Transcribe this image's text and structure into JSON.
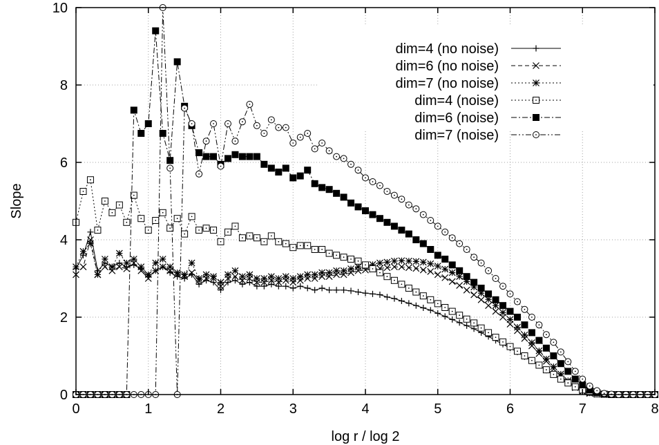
{
  "chart_data": {
    "type": "line",
    "title": "",
    "xlabel": "log r / log 2",
    "ylabel": "Slope",
    "xlim": [
      0,
      8
    ],
    "ylim": [
      0,
      10
    ],
    "xticks": [
      "0",
      "1",
      "2",
      "3",
      "4",
      "5",
      "6",
      "7",
      "8"
    ],
    "yticks": [
      "0",
      "2",
      "4",
      "6",
      "8",
      "10"
    ],
    "grid": true,
    "legend_position": "top-right",
    "series": [
      {
        "name": "dim=4 (no noise)",
        "marker": "plus",
        "line": "solid",
        "x": [
          0,
          0.1,
          0.2,
          0.3,
          0.4,
          0.5,
          0.6,
          0.7,
          0.8,
          0.9,
          1.0,
          1.1,
          1.2,
          1.3,
          1.4,
          1.5,
          1.6,
          1.7,
          1.8,
          1.9,
          2.0,
          2.1,
          2.2,
          2.3,
          2.4,
          2.5,
          2.6,
          2.7,
          2.8,
          2.9,
          3.0,
          3.1,
          3.2,
          3.3,
          3.4,
          3.5,
          3.6,
          3.7,
          3.8,
          3.9,
          4.0,
          4.1,
          4.2,
          4.3,
          4.4,
          4.5,
          4.6,
          4.7,
          4.8,
          4.9,
          5.0,
          5.1,
          5.2,
          5.3,
          5.4,
          5.5,
          5.6,
          5.7,
          5.8,
          5.9,
          6.0,
          6.1,
          6.2,
          6.3,
          6.4,
          6.5,
          6.6,
          6.7,
          6.8,
          6.9,
          7.0,
          7.1,
          7.2,
          7.3,
          7.4,
          7.5,
          7.6,
          7.7,
          7.8,
          7.9,
          8.0
        ],
        "y": [
          3.25,
          3.6,
          4.2,
          3.2,
          3.4,
          3.3,
          3.4,
          3.3,
          3.35,
          3.25,
          3.05,
          3.2,
          3.3,
          3.15,
          3.05,
          3.0,
          3.1,
          2.85,
          2.95,
          2.9,
          2.7,
          2.9,
          2.95,
          2.85,
          2.9,
          2.8,
          2.8,
          2.85,
          2.8,
          2.8,
          2.75,
          2.8,
          2.75,
          2.7,
          2.75,
          2.7,
          2.7,
          2.7,
          2.68,
          2.65,
          2.62,
          2.6,
          2.58,
          2.52,
          2.48,
          2.42,
          2.36,
          2.3,
          2.24,
          2.18,
          2.1,
          2.02,
          1.94,
          1.86,
          1.78,
          1.7,
          1.6,
          1.5,
          1.4,
          1.3,
          1.2,
          1.1,
          0.98,
          0.87,
          0.75,
          0.63,
          0.52,
          0.4,
          0.3,
          0.2,
          0.12,
          0.05,
          0.02,
          0.01,
          0,
          0,
          0,
          0,
          0,
          0,
          0
        ]
      },
      {
        "name": "dim=6 (no noise)",
        "marker": "cross",
        "line": "dashed",
        "x": [
          0,
          0.1,
          0.2,
          0.3,
          0.4,
          0.5,
          0.6,
          0.7,
          0.8,
          0.9,
          1.0,
          1.1,
          1.2,
          1.3,
          1.4,
          1.5,
          1.6,
          1.7,
          1.8,
          1.9,
          2.0,
          2.1,
          2.2,
          2.3,
          2.4,
          2.5,
          2.6,
          2.7,
          2.8,
          2.9,
          3.0,
          3.1,
          3.2,
          3.3,
          3.4,
          3.5,
          3.6,
          3.7,
          3.8,
          3.9,
          4.0,
          4.1,
          4.2,
          4.3,
          4.4,
          4.5,
          4.6,
          4.7,
          4.8,
          4.9,
          5.0,
          5.1,
          5.2,
          5.3,
          5.4,
          5.5,
          5.6,
          5.7,
          5.8,
          5.9,
          6.0,
          6.1,
          6.2,
          6.3,
          6.4,
          6.5,
          6.6,
          6.7,
          6.8,
          6.9,
          7.0,
          7.1,
          7.2,
          7.3,
          7.4,
          7.5,
          7.6,
          7.7,
          7.8,
          7.9,
          8.0
        ],
        "y": [
          3.1,
          3.3,
          4.0,
          3.1,
          3.3,
          3.2,
          3.3,
          3.25,
          3.4,
          3.2,
          3.0,
          3.2,
          3.3,
          3.2,
          3.1,
          3.05,
          3.15,
          2.95,
          3.0,
          3.0,
          2.8,
          3.0,
          3.05,
          2.95,
          3.0,
          2.9,
          2.9,
          2.95,
          2.9,
          2.95,
          2.9,
          2.95,
          3.0,
          3.0,
          3.05,
          3.05,
          3.1,
          3.1,
          3.15,
          3.2,
          3.22,
          3.24,
          3.26,
          3.28,
          3.3,
          3.3,
          3.28,
          3.26,
          3.22,
          3.18,
          3.1,
          3.02,
          2.92,
          2.82,
          2.7,
          2.58,
          2.45,
          2.3,
          2.15,
          2.0,
          1.82,
          1.65,
          1.45,
          1.26,
          1.06,
          0.86,
          0.66,
          0.48,
          0.32,
          0.18,
          0.08,
          0.03,
          0.01,
          0,
          0,
          0,
          0,
          0,
          0,
          0,
          0
        ]
      },
      {
        "name": "dim=7 (no noise)",
        "marker": "star",
        "line": "dotted",
        "x": [
          0,
          0.1,
          0.2,
          0.3,
          0.4,
          0.5,
          0.6,
          0.7,
          0.8,
          0.9,
          1.0,
          1.1,
          1.2,
          1.3,
          1.4,
          1.5,
          1.6,
          1.7,
          1.8,
          1.9,
          2.0,
          2.1,
          2.2,
          2.3,
          2.4,
          2.5,
          2.6,
          2.7,
          2.8,
          2.9,
          3.0,
          3.1,
          3.2,
          3.3,
          3.4,
          3.5,
          3.6,
          3.7,
          3.8,
          3.9,
          4.0,
          4.1,
          4.2,
          4.3,
          4.4,
          4.5,
          4.6,
          4.7,
          4.8,
          4.9,
          5.0,
          5.1,
          5.2,
          5.3,
          5.4,
          5.5,
          5.6,
          5.7,
          5.8,
          5.9,
          6.0,
          6.1,
          6.2,
          6.3,
          6.4,
          6.5,
          6.6,
          6.7,
          6.8,
          6.9,
          7.0,
          7.1,
          7.2,
          7.3,
          7.4,
          7.5,
          7.6,
          7.7,
          7.8,
          7.9,
          8.0
        ],
        "y": [
          3.3,
          3.7,
          3.9,
          3.1,
          3.5,
          3.3,
          3.65,
          3.4,
          3.5,
          3.3,
          3.1,
          3.4,
          3.5,
          3.3,
          3.15,
          3.1,
          3.4,
          3.0,
          3.1,
          3.05,
          2.9,
          3.1,
          3.2,
          3.05,
          3.1,
          3.0,
          3.0,
          3.05,
          3.0,
          3.05,
          3.0,
          3.05,
          3.1,
          3.1,
          3.15,
          3.15,
          3.2,
          3.2,
          3.25,
          3.3,
          3.32,
          3.36,
          3.4,
          3.42,
          3.45,
          3.46,
          3.45,
          3.44,
          3.42,
          3.38,
          3.32,
          3.24,
          3.15,
          3.05,
          2.92,
          2.78,
          2.62,
          2.46,
          2.3,
          2.12,
          1.94,
          1.74,
          1.54,
          1.34,
          1.13,
          0.92,
          0.72,
          0.53,
          0.36,
          0.21,
          0.1,
          0.04,
          0.01,
          0,
          0,
          0,
          0,
          0,
          0,
          0,
          0
        ]
      },
      {
        "name": "dim=4 (noise)",
        "marker": "dotted-square",
        "line": "dotted",
        "x": [
          0,
          0.1,
          0.2,
          0.3,
          0.4,
          0.5,
          0.6,
          0.7,
          0.8,
          0.9,
          1.0,
          1.1,
          1.2,
          1.3,
          1.4,
          1.5,
          1.6,
          1.7,
          1.8,
          1.9,
          2.0,
          2.1,
          2.2,
          2.3,
          2.4,
          2.5,
          2.6,
          2.7,
          2.8,
          2.9,
          3.0,
          3.1,
          3.2,
          3.3,
          3.4,
          3.5,
          3.6,
          3.7,
          3.8,
          3.9,
          4.0,
          4.1,
          4.2,
          4.3,
          4.4,
          4.5,
          4.6,
          4.7,
          4.8,
          4.9,
          5.0,
          5.1,
          5.2,
          5.3,
          5.4,
          5.5,
          5.6,
          5.7,
          5.8,
          5.9,
          6.0,
          6.1,
          6.2,
          6.3,
          6.4,
          6.5,
          6.6,
          6.7,
          6.8,
          6.9,
          7.0,
          7.1,
          7.2,
          7.3,
          7.4,
          7.5,
          7.6,
          7.7,
          7.8,
          7.9,
          8.0
        ],
        "y": [
          4.45,
          5.25,
          5.55,
          4.25,
          5.0,
          4.7,
          4.9,
          4.45,
          5.15,
          4.55,
          4.25,
          4.5,
          4.7,
          4.3,
          4.55,
          4.15,
          4.6,
          4.25,
          4.3,
          4.25,
          3.95,
          4.2,
          4.35,
          4.05,
          4.1,
          4.05,
          3.95,
          4.1,
          3.95,
          3.9,
          3.8,
          3.85,
          3.85,
          3.75,
          3.75,
          3.65,
          3.6,
          3.55,
          3.5,
          3.45,
          3.35,
          3.25,
          3.15,
          3.05,
          2.95,
          2.85,
          2.75,
          2.65,
          2.55,
          2.45,
          2.35,
          2.25,
          2.15,
          2.05,
          1.95,
          1.85,
          1.72,
          1.6,
          1.48,
          1.36,
          1.24,
          1.12,
          1.0,
          0.88,
          0.76,
          0.64,
          0.52,
          0.4,
          0.3,
          0.2,
          0.12,
          0.06,
          0.02,
          0.01,
          0,
          0,
          0,
          0,
          0,
          0,
          0
        ]
      },
      {
        "name": "dim=6 (noise)",
        "marker": "filled-square",
        "line": "dash-dot",
        "x": [
          0,
          0.1,
          0.2,
          0.3,
          0.4,
          0.5,
          0.6,
          0.7,
          0.8,
          0.9,
          1.0,
          1.1,
          1.2,
          1.3,
          1.4,
          1.5,
          1.6,
          1.7,
          1.8,
          1.9,
          2.0,
          2.1,
          2.2,
          2.3,
          2.4,
          2.5,
          2.6,
          2.7,
          2.8,
          2.9,
          3.0,
          3.1,
          3.2,
          3.3,
          3.4,
          3.5,
          3.6,
          3.7,
          3.8,
          3.9,
          4.0,
          4.1,
          4.2,
          4.3,
          4.4,
          4.5,
          4.6,
          4.7,
          4.8,
          4.9,
          5.0,
          5.1,
          5.2,
          5.3,
          5.4,
          5.5,
          5.6,
          5.7,
          5.8,
          5.9,
          6.0,
          6.1,
          6.2,
          6.3,
          6.4,
          6.5,
          6.6,
          6.7,
          6.8,
          6.9,
          7.0,
          7.1,
          7.2,
          7.3,
          7.4,
          7.5,
          7.6,
          7.7,
          7.8,
          7.9,
          8.0
        ],
        "y": [
          0,
          0,
          0,
          0,
          0,
          0,
          0,
          0,
          7.35,
          6.75,
          7.0,
          9.4,
          6.75,
          6.05,
          8.6,
          7.45,
          6.95,
          6.25,
          6.15,
          6.15,
          5.95,
          6.1,
          6.2,
          6.15,
          6.15,
          6.15,
          5.95,
          5.85,
          5.75,
          5.85,
          5.6,
          5.65,
          5.8,
          5.45,
          5.35,
          5.3,
          5.2,
          5.1,
          4.95,
          4.85,
          4.75,
          4.65,
          4.55,
          4.45,
          4.35,
          4.25,
          4.15,
          4.0,
          3.9,
          3.75,
          3.6,
          3.5,
          3.35,
          3.2,
          3.05,
          2.9,
          2.75,
          2.6,
          2.45,
          2.3,
          2.15,
          2.0,
          1.8,
          1.6,
          1.4,
          1.2,
          1.0,
          0.8,
          0.6,
          0.4,
          0.25,
          0.12,
          0.05,
          0.01,
          0,
          0,
          0,
          0,
          0,
          0,
          0
        ]
      },
      {
        "name": "dim=7 (noise)",
        "marker": "dotted-circle",
        "line": "dash-dot-dot",
        "x": [
          0,
          0.1,
          0.2,
          0.3,
          0.4,
          0.5,
          0.6,
          0.7,
          0.8,
          0.9,
          1.0,
          1.1,
          1.2,
          1.3,
          1.4,
          1.5,
          1.6,
          1.7,
          1.8,
          1.9,
          2.0,
          2.1,
          2.2,
          2.3,
          2.4,
          2.5,
          2.6,
          2.7,
          2.8,
          2.9,
          3.0,
          3.1,
          3.2,
          3.3,
          3.4,
          3.5,
          3.6,
          3.7,
          3.8,
          3.9,
          4.0,
          4.1,
          4.2,
          4.3,
          4.4,
          4.5,
          4.6,
          4.7,
          4.8,
          4.9,
          5.0,
          5.1,
          5.2,
          5.3,
          5.4,
          5.5,
          5.6,
          5.7,
          5.8,
          5.9,
          6.0,
          6.1,
          6.2,
          6.3,
          6.4,
          6.5,
          6.6,
          6.7,
          6.8,
          6.9,
          7.0,
          7.1,
          7.2,
          7.3,
          7.4,
          7.5,
          7.6,
          7.7,
          7.8,
          7.9,
          8.0
        ],
        "y": [
          0,
          0,
          0,
          0,
          0,
          0,
          0,
          0,
          0,
          0,
          0,
          0,
          10.0,
          5.85,
          0,
          7.4,
          7.0,
          5.7,
          6.55,
          7.0,
          5.9,
          7.0,
          6.55,
          7.05,
          7.5,
          6.95,
          6.75,
          7.1,
          6.9,
          6.9,
          6.5,
          6.65,
          6.75,
          6.35,
          6.5,
          6.3,
          6.15,
          6.1,
          5.95,
          5.8,
          5.6,
          5.5,
          5.4,
          5.25,
          5.15,
          5.05,
          4.9,
          4.8,
          4.65,
          4.5,
          4.35,
          4.2,
          4.05,
          3.9,
          3.75,
          3.55,
          3.4,
          3.2,
          3.0,
          2.8,
          2.6,
          2.4,
          2.2,
          2.0,
          1.8,
          1.55,
          1.35,
          1.1,
          0.85,
          0.6,
          0.4,
          0.22,
          0.1,
          0.03,
          0.01,
          0,
          0,
          0,
          0,
          0,
          0
        ]
      }
    ]
  }
}
